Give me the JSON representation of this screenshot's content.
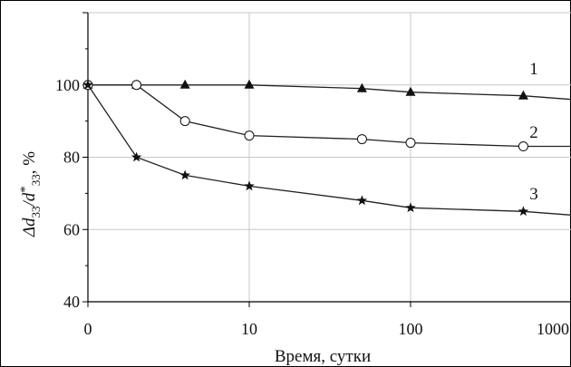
{
  "chart_data": {
    "type": "line",
    "xscale": "log",
    "x_tick_labels": [
      "0",
      "10",
      "100",
      "1000"
    ],
    "y_tick_labels": [
      "40",
      "60",
      "80",
      "100"
    ],
    "ylim": [
      40,
      120
    ],
    "grid": true,
    "xlabel": "Время, сутки",
    "ylabel": {
      "main": "Δd",
      "sub1": "33",
      "slash": "/d",
      "star": "*",
      "sub2": "33",
      "unit": ", %"
    },
    "series": [
      {
        "name": "1",
        "marker": "filled-triangle",
        "x": [
          1,
          2,
          4,
          10,
          50,
          100,
          500,
          1200
        ],
        "y": [
          100,
          100,
          100,
          100,
          99,
          98,
          97,
          96
        ]
      },
      {
        "name": "2",
        "marker": "open-circle",
        "x": [
          1,
          2,
          4,
          10,
          50,
          100,
          500,
          1200
        ],
        "y": [
          100,
          100,
          90,
          86,
          85,
          84,
          83,
          83
        ]
      },
      {
        "name": "3",
        "marker": "star",
        "x": [
          1,
          2,
          4,
          10,
          50,
          100,
          500,
          1200
        ],
        "y": [
          100,
          80,
          75,
          72,
          68,
          66,
          65,
          64
        ]
      }
    ]
  }
}
